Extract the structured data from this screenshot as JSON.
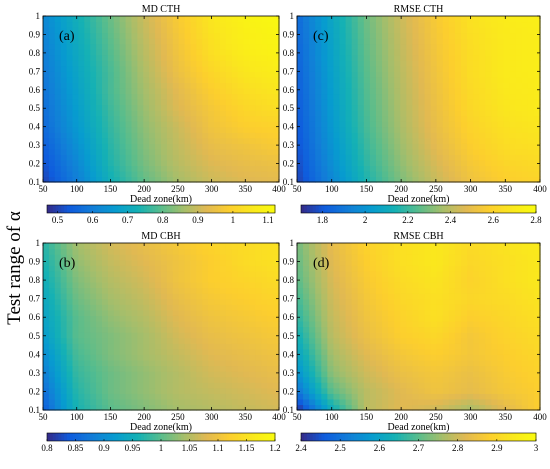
{
  "figure": {
    "ylabel": "Test range of α"
  },
  "chart_data": [
    {
      "type": "heatmap",
      "title": "MD CTH",
      "panel_label": "(a)",
      "xlabel": "Dead zone(km)",
      "x_ticks": [
        50,
        100,
        150,
        200,
        250,
        300,
        350,
        400
      ],
      "y_ticks": [
        0.1,
        0.2,
        0.3,
        0.4,
        0.5,
        0.6,
        0.7,
        0.8,
        0.9,
        1
      ],
      "xlim": [
        50,
        400
      ],
      "ylim": [
        0.1,
        1
      ],
      "colorbar": {
        "ticks": [
          0.5,
          0.6,
          0.7,
          0.8,
          0.9,
          1,
          1.1
        ],
        "range": [
          0.47,
          1.12
        ]
      },
      "x": [
        50,
        100,
        150,
        200,
        250,
        300,
        350,
        400
      ],
      "y": [
        0.1,
        0.2,
        0.3,
        0.4,
        0.5,
        0.6,
        0.7,
        0.8,
        0.9,
        1
      ],
      "z": [
        [
          0.5,
          0.6,
          0.72,
          0.8,
          0.86,
          0.9,
          0.92,
          0.93
        ],
        [
          0.52,
          0.62,
          0.74,
          0.82,
          0.88,
          0.92,
          0.94,
          0.95
        ],
        [
          0.54,
          0.64,
          0.75,
          0.83,
          0.89,
          0.94,
          0.96,
          0.98
        ],
        [
          0.56,
          0.66,
          0.76,
          0.84,
          0.9,
          0.96,
          0.99,
          1.0
        ],
        [
          0.57,
          0.67,
          0.77,
          0.85,
          0.92,
          0.97,
          1.01,
          1.03
        ],
        [
          0.58,
          0.68,
          0.78,
          0.86,
          0.93,
          0.99,
          1.03,
          1.05
        ],
        [
          0.59,
          0.69,
          0.78,
          0.87,
          0.95,
          1.01,
          1.05,
          1.07
        ],
        [
          0.6,
          0.7,
          0.79,
          0.88,
          0.96,
          1.03,
          1.07,
          1.09
        ],
        [
          0.61,
          0.71,
          0.8,
          0.89,
          0.97,
          1.04,
          1.08,
          1.1
        ],
        [
          0.62,
          0.72,
          0.81,
          0.9,
          0.98,
          1.05,
          1.09,
          1.11
        ]
      ]
    },
    {
      "type": "heatmap",
      "title": "RMSE CTH",
      "panel_label": "(c)",
      "xlabel": "Dead zone(km)",
      "x_ticks": [
        50,
        100,
        150,
        200,
        250,
        300,
        350,
        400
      ],
      "y_ticks": [
        0.1,
        0.2,
        0.3,
        0.4,
        0.5,
        0.6,
        0.7,
        0.8,
        0.9,
        1
      ],
      "xlim": [
        50,
        400
      ],
      "ylim": [
        0.1,
        1
      ],
      "colorbar": {
        "ticks": [
          1.8,
          2,
          2.2,
          2.4,
          2.6,
          2.8
        ],
        "range": [
          1.7,
          2.8
        ]
      },
      "x": [
        50,
        100,
        150,
        200,
        250,
        300,
        350,
        400
      ],
      "y": [
        0.1,
        0.2,
        0.3,
        0.4,
        0.5,
        0.6,
        0.7,
        0.8,
        0.9,
        1
      ],
      "z": [
        [
          1.75,
          1.95,
          2.15,
          2.3,
          2.42,
          2.52,
          2.58,
          2.6
        ],
        [
          1.77,
          1.98,
          2.18,
          2.33,
          2.45,
          2.55,
          2.61,
          2.63
        ],
        [
          1.79,
          2.0,
          2.2,
          2.35,
          2.48,
          2.58,
          2.64,
          2.66
        ],
        [
          1.8,
          2.02,
          2.22,
          2.37,
          2.5,
          2.6,
          2.66,
          2.68
        ],
        [
          1.81,
          2.03,
          2.23,
          2.38,
          2.51,
          2.62,
          2.68,
          2.7
        ],
        [
          1.82,
          2.04,
          2.24,
          2.39,
          2.52,
          2.63,
          2.69,
          2.71
        ],
        [
          1.83,
          2.05,
          2.25,
          2.4,
          2.53,
          2.64,
          2.7,
          2.72
        ],
        [
          1.84,
          2.06,
          2.26,
          2.41,
          2.54,
          2.64,
          2.7,
          2.72
        ],
        [
          1.85,
          2.07,
          2.27,
          2.42,
          2.55,
          2.65,
          2.7,
          2.72
        ],
        [
          1.86,
          2.08,
          2.28,
          2.43,
          2.56,
          2.66,
          2.71,
          2.73
        ]
      ]
    },
    {
      "type": "heatmap",
      "title": "MD CBH",
      "panel_label": "(b)",
      "xlabel": "Dead zone(km)",
      "x_ticks": [
        50,
        100,
        150,
        200,
        250,
        300,
        350,
        400
      ],
      "y_ticks": [
        0.1,
        0.2,
        0.3,
        0.4,
        0.5,
        0.6,
        0.7,
        0.8,
        0.9,
        1
      ],
      "xlim": [
        50,
        400
      ],
      "ylim": [
        0.1,
        1
      ],
      "colorbar": {
        "ticks": [
          0.8,
          0.85,
          0.9,
          0.95,
          1,
          1.05,
          1.1,
          1.15,
          1.2
        ],
        "range": [
          0.8,
          1.2
        ]
      },
      "x": [
        50,
        100,
        150,
        200,
        250,
        300,
        350,
        400
      ],
      "y": [
        0.1,
        0.2,
        0.3,
        0.4,
        0.5,
        0.6,
        0.7,
        0.8,
        0.9,
        1
      ],
      "z": [
        [
          0.84,
          0.96,
          1.0,
          1.02,
          1.04,
          1.05,
          1.06,
          1.07
        ],
        [
          0.86,
          0.97,
          1.01,
          1.03,
          1.05,
          1.06,
          1.07,
          1.08
        ],
        [
          0.88,
          0.98,
          1.01,
          1.03,
          1.05,
          1.07,
          1.08,
          1.09
        ],
        [
          0.9,
          0.99,
          1.02,
          1.04,
          1.06,
          1.08,
          1.09,
          1.1
        ],
        [
          0.92,
          1.0,
          1.02,
          1.04,
          1.07,
          1.09,
          1.1,
          1.11
        ],
        [
          0.93,
          1.0,
          1.03,
          1.05,
          1.08,
          1.1,
          1.11,
          1.12
        ],
        [
          0.94,
          1.01,
          1.04,
          1.06,
          1.09,
          1.11,
          1.12,
          1.13
        ],
        [
          0.95,
          1.02,
          1.05,
          1.07,
          1.1,
          1.12,
          1.13,
          1.14
        ],
        [
          0.96,
          1.03,
          1.06,
          1.08,
          1.1,
          1.12,
          1.14,
          1.15
        ],
        [
          0.97,
          1.04,
          1.07,
          1.09,
          1.11,
          1.13,
          1.14,
          1.15
        ]
      ]
    },
    {
      "type": "heatmap",
      "title": "RMSE CBH",
      "panel_label": "(d)",
      "xlabel": "Dead zone(km)",
      "x_ticks": [
        50,
        100,
        150,
        200,
        250,
        300,
        350,
        400
      ],
      "y_ticks": [
        0.1,
        0.2,
        0.3,
        0.4,
        0.5,
        0.6,
        0.7,
        0.8,
        0.9,
        1
      ],
      "xlim": [
        50,
        400
      ],
      "ylim": [
        0.1,
        1
      ],
      "colorbar": {
        "ticks": [
          2.4,
          2.5,
          2.6,
          2.7,
          2.8,
          2.9,
          3
        ],
        "range": [
          2.4,
          3.0
        ]
      },
      "x": [
        50,
        100,
        150,
        200,
        250,
        300,
        350,
        400
      ],
      "y": [
        0.1,
        0.2,
        0.3,
        0.4,
        0.5,
        0.6,
        0.7,
        0.8,
        0.9,
        1
      ],
      "z": [
        [
          2.4,
          2.62,
          2.78,
          2.82,
          2.8,
          2.76,
          2.82,
          2.88
        ],
        [
          2.5,
          2.7,
          2.78,
          2.82,
          2.85,
          2.83,
          2.86,
          2.88
        ],
        [
          2.56,
          2.74,
          2.8,
          2.84,
          2.86,
          2.84,
          2.87,
          2.89
        ],
        [
          2.6,
          2.76,
          2.82,
          2.86,
          2.88,
          2.86,
          2.88,
          2.9
        ],
        [
          2.63,
          2.78,
          2.84,
          2.88,
          2.9,
          2.86,
          2.89,
          2.91
        ],
        [
          2.66,
          2.79,
          2.85,
          2.89,
          2.92,
          2.88,
          2.9,
          2.92
        ],
        [
          2.68,
          2.8,
          2.86,
          2.9,
          2.92,
          2.9,
          2.91,
          2.93
        ],
        [
          2.7,
          2.81,
          2.87,
          2.91,
          2.93,
          2.89,
          2.92,
          2.94
        ],
        [
          2.71,
          2.82,
          2.88,
          2.92,
          2.94,
          2.9,
          2.92,
          2.94
        ],
        [
          2.72,
          2.83,
          2.89,
          2.92,
          2.94,
          2.91,
          2.93,
          2.95
        ]
      ]
    }
  ]
}
